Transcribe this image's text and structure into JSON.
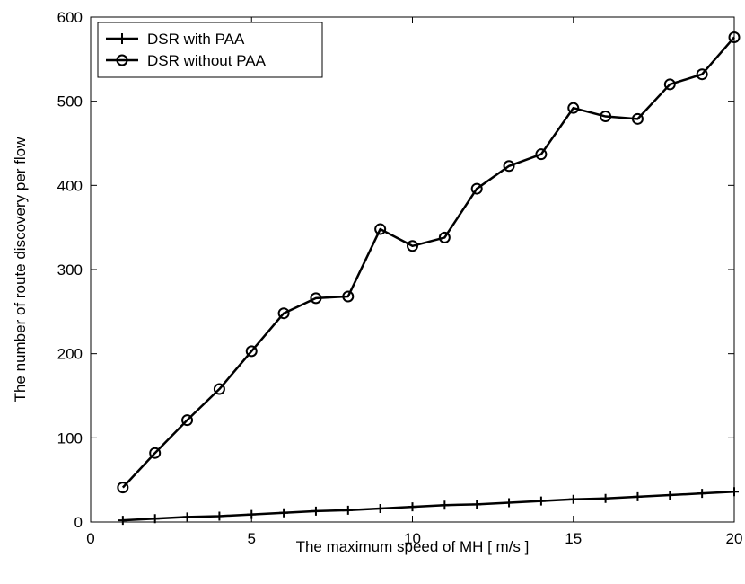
{
  "chart_data": {
    "type": "line",
    "title": "",
    "xlabel": "The maximum speed of MH [ m/s ]",
    "ylabel": "The number of  route discovery per flow",
    "xlim": [
      0,
      20
    ],
    "ylim": [
      0,
      600
    ],
    "xticks": [
      0,
      5,
      10,
      15,
      20
    ],
    "yticks": [
      0,
      100,
      200,
      300,
      400,
      500,
      600
    ],
    "grid": false,
    "legend_position": "top-left",
    "x": [
      1,
      2,
      3,
      4,
      5,
      6,
      7,
      8,
      9,
      10,
      11,
      12,
      13,
      14,
      15,
      16,
      17,
      18,
      19,
      20
    ],
    "series": [
      {
        "name": "DSR with PAA",
        "marker": "plus",
        "color": "#000000",
        "values": [
          2,
          4,
          6,
          7,
          9,
          11,
          13,
          14,
          16,
          18,
          20,
          21,
          23,
          25,
          27,
          28,
          30,
          32,
          34,
          36
        ]
      },
      {
        "name": "DSR without PAA",
        "marker": "circle",
        "color": "#000000",
        "values": [
          41,
          82,
          121,
          158,
          203,
          248,
          266,
          268,
          348,
          328,
          338,
          396,
          423,
          437,
          492,
          482,
          479,
          520,
          532,
          576
        ]
      }
    ]
  }
}
